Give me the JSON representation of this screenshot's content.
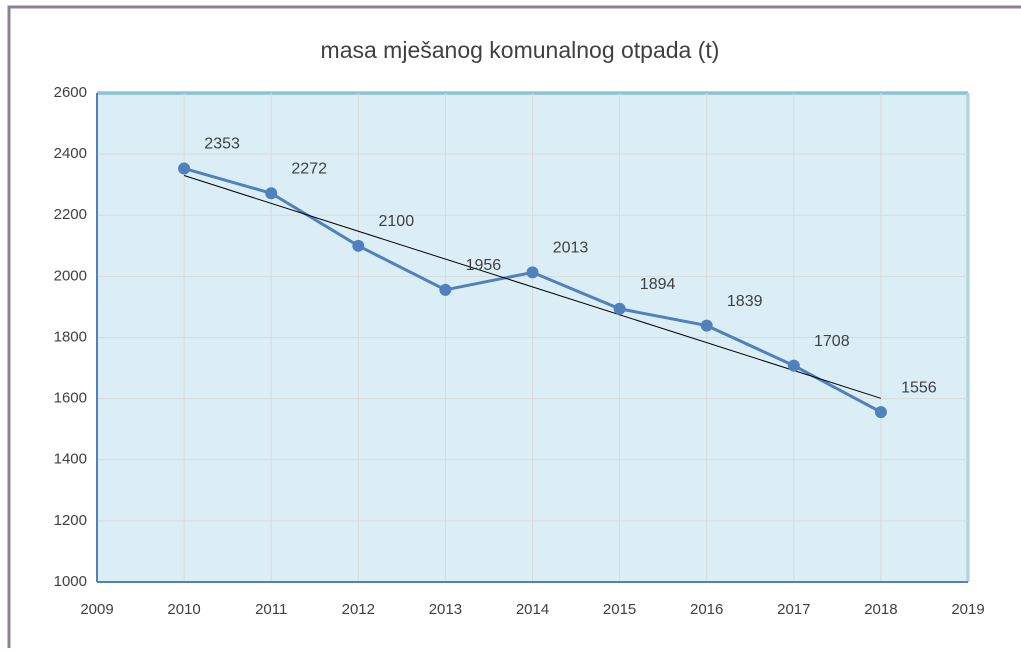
{
  "chart_data": {
    "type": "line",
    "title": "masa mješanog komunalnog otpada (t)",
    "x": [
      2010,
      2011,
      2012,
      2013,
      2014,
      2015,
      2016,
      2017,
      2018
    ],
    "series": [
      {
        "color": "#4f81bd",
        "values": [
          2353,
          2272,
          2100,
          1956,
          2013,
          1894,
          1839,
          1708,
          1556
        ]
      }
    ],
    "trendline": {
      "x": [
        2010,
        2018
      ],
      "values": [
        2330,
        1601
      ],
      "color": "#000000"
    },
    "xlim": [
      2009,
      2019
    ],
    "xticks": [
      2009,
      2010,
      2011,
      2012,
      2013,
      2014,
      2015,
      2016,
      2017,
      2018,
      2019
    ],
    "ylim": [
      1000,
      2600
    ],
    "yticks": [
      1000,
      1200,
      1400,
      1600,
      1800,
      2000,
      2200,
      2400,
      2600
    ],
    "grid": true,
    "data_labels": true
  }
}
